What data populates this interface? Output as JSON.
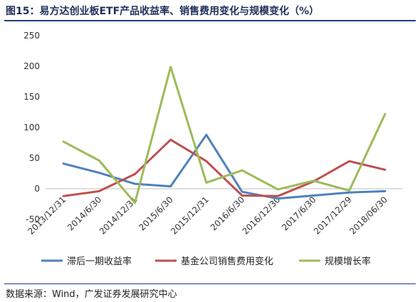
{
  "title": "图15：易方达创业板ETF产品收益率、销售费用变化与规模变化（%）",
  "source": "数据来源：Wind，广发证券发展研究中心",
  "chart_data": {
    "type": "line",
    "categories": [
      "2013/12/31",
      "2014/6/30",
      "2014/12/31",
      "2015/6/30",
      "2015/12/31",
      "2016/6/30",
      "2016/12/30",
      "2017/6/30",
      "2017/12/29",
      "2018/06/30"
    ],
    "ylim": [
      -50,
      250
    ],
    "yticks": [
      -50,
      0,
      50,
      100,
      150,
      200,
      250
    ],
    "grid": false,
    "legend": "bottom",
    "series": [
      {
        "name": "滞后一期收益率",
        "color": "#4f81bd",
        "values": [
          41,
          26,
          8,
          4,
          88,
          -5,
          -16,
          -11,
          -6,
          -4
        ]
      },
      {
        "name": "基金公司销售费用变化",
        "color": "#c0504d",
        "values": [
          -12,
          -4,
          24,
          80,
          45,
          -11,
          -12,
          12,
          45,
          31
        ]
      },
      {
        "name": "规模增长率",
        "color": "#9bbb59",
        "values": [
          77,
          46,
          -23,
          199,
          10,
          30,
          -1,
          13,
          -3,
          122
        ]
      }
    ]
  }
}
